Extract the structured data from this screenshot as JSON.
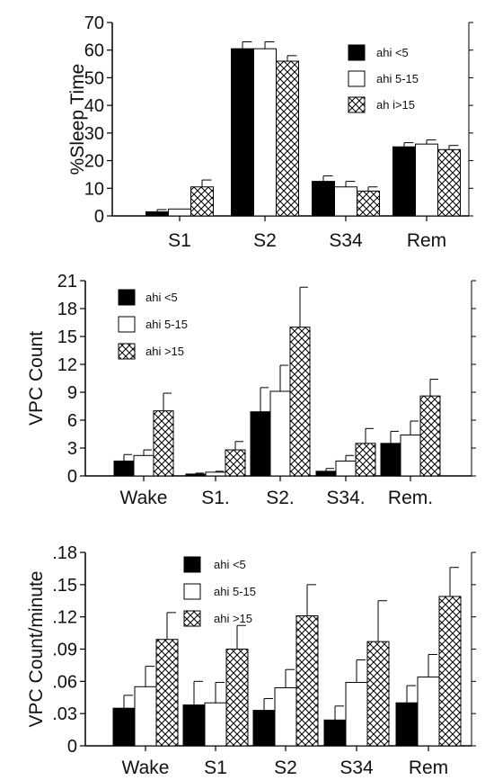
{
  "chart_data": [
    {
      "type": "bar",
      "ylabel": "%Sleep Time",
      "ylim": [
        0,
        70
      ],
      "yticks": [
        "0",
        "10",
        "20",
        "30",
        "40",
        "50",
        "60",
        "70"
      ],
      "categories": [
        "S1",
        "S2",
        "S34",
        "Rem"
      ],
      "series": [
        {
          "name": "ahi <5",
          "values": [
            1.5,
            60.5,
            12.5,
            25
          ],
          "errors": [
            0.8,
            2.5,
            2,
            1.5
          ]
        },
        {
          "name": "ahi 5-15",
          "values": [
            2.5,
            60.5,
            10.5,
            26
          ],
          "errors": [
            0,
            2.5,
            2,
            1.5
          ]
        },
        {
          "name": "ah i>15",
          "values": [
            10.5,
            56,
            9,
            24
          ],
          "errors": [
            2.5,
            2,
            1.5,
            1.5
          ]
        }
      ],
      "legend_position": "top-right",
      "grid": false
    },
    {
      "type": "bar",
      "ylabel": "VPC Count",
      "ylim": [
        0,
        21
      ],
      "yticks": [
        "0",
        "3",
        "6",
        "9",
        "12",
        "15",
        "18",
        "21"
      ],
      "categories": [
        "Wake",
        "S1.",
        "S2.",
        "S34.",
        "Rem."
      ],
      "series": [
        {
          "name": "ahi <5",
          "values": [
            1.6,
            0.2,
            6.9,
            0.5,
            3.5
          ],
          "errors": [
            0.7,
            0.1,
            2.6,
            0.3,
            1.3
          ]
        },
        {
          "name": "ahi 5-15",
          "values": [
            2.2,
            0.4,
            9.1,
            1.6,
            4.4
          ],
          "errors": [
            0.6,
            0.1,
            2.8,
            0.6,
            1.5
          ]
        },
        {
          "name": "ahi >15",
          "values": [
            7,
            2.8,
            16,
            3.5,
            8.6
          ],
          "errors": [
            1.9,
            0.9,
            4.3,
            1.6,
            1.8
          ]
        }
      ],
      "legend_position": "top-left",
      "grid": false
    },
    {
      "type": "bar",
      "ylabel": "VPC Count/minute",
      "ylim": [
        0,
        0.18
      ],
      "yticks": [
        "0",
        ".03",
        ".06",
        ".09",
        ".12",
        ".15",
        ".18"
      ],
      "categories": [
        "Wake",
        "S1",
        "S2",
        "S34",
        "Rem"
      ],
      "series": [
        {
          "name": "ahi <5",
          "values": [
            0.035,
            0.038,
            0.033,
            0.024,
            0.04
          ],
          "errors": [
            0.012,
            0.022,
            0.011,
            0.013,
            0.016
          ]
        },
        {
          "name": "ahi 5-15",
          "values": [
            0.055,
            0.04,
            0.054,
            0.059,
            0.064
          ],
          "errors": [
            0.019,
            0.019,
            0.017,
            0.021,
            0.021
          ]
        },
        {
          "name": "ahi >15",
          "values": [
            0.099,
            0.09,
            0.121,
            0.097,
            0.139
          ],
          "errors": [
            0.025,
            0.022,
            0.029,
            0.038,
            0.027
          ]
        }
      ],
      "legend_position": "top-center",
      "grid": false
    }
  ]
}
